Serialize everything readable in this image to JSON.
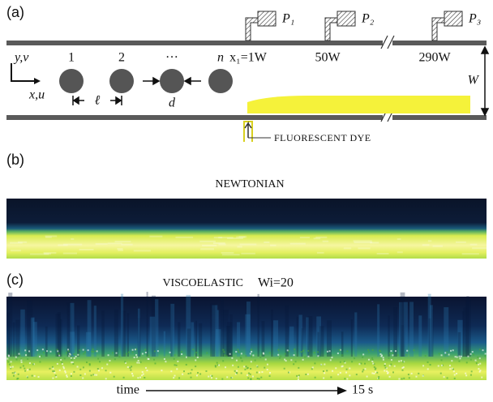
{
  "panel_a": {
    "label": "(a)",
    "taps": [
      {
        "name": "P₁",
        "position": "x₁=1W"
      },
      {
        "name": "P₂",
        "position": "50W"
      },
      {
        "name": "P₃",
        "position": "290W"
      }
    ],
    "axes": {
      "y": "y,v",
      "x": "x,u"
    },
    "cylinders": [
      "1",
      "2",
      "···",
      "n"
    ],
    "spacing": "ℓ",
    "diameter": "d",
    "width": "W",
    "dye": "FLUORESCENT DYE"
  },
  "panel_b": {
    "label": "(b)",
    "title": "NEWTONIAN"
  },
  "panel_c": {
    "label": "(c)",
    "title": "VISCOELASTIC",
    "wi": "Wi=20"
  },
  "time_axis": {
    "start": "time",
    "end": "15 s"
  }
}
